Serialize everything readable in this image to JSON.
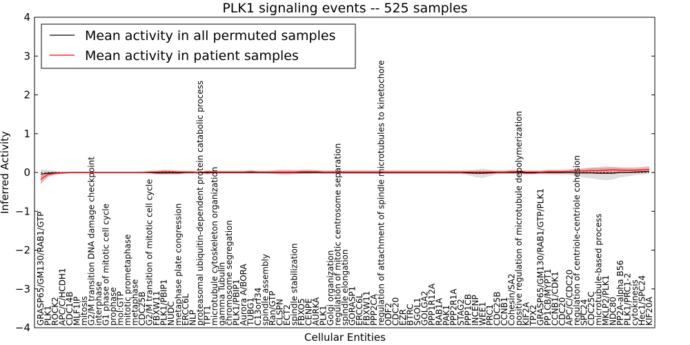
{
  "chart_data": {
    "type": "line",
    "title": "PLK1 signaling events -- 525 samples",
    "xlabel": "Cellular Entities",
    "ylabel": "Inferred Activity",
    "ylim": [
      -4,
      4
    ],
    "yticks": [
      -4,
      -3,
      -2,
      -1,
      0,
      1,
      2,
      3,
      4
    ],
    "ytick_labels": [
      "−4",
      "−3",
      "−2",
      "−1",
      "0",
      "1",
      "2",
      "3",
      "4"
    ],
    "grid": false,
    "legend_position": "top-left",
    "legend": [
      {
        "label": "Mean activity in all permuted samples",
        "color": "#000000"
      },
      {
        "label": "Mean activity in patient samples",
        "color": "#ff0000"
      }
    ],
    "categories": [
      "GRASP65/GM130/RAB1/GTP",
      "PLK1",
      "ROCK2",
      "APC/C/HCDH1",
      "CDC14B",
      "MLF1IP",
      "mitosis",
      "G2/M transition DNA damage checkpoint",
      "interphase",
      "G1 phase of mitotic cell cycle",
      "prophase",
      "mol:GTP",
      "mitotic prometaphase",
      "metaphase",
      "CDC25B",
      "G2/M transition of mitotic cell cycle",
      "FBXW11",
      "PLK1/PBIP1",
      "NUDC",
      "metaphase plate congression",
      "ERCC6L",
      "NLP",
      "proteasomal ubiquitin-dependent protein catabolic process",
      "TPT1",
      "microtubule cytoskeleton organization",
      "gamma Tubulin",
      "chromosome segregation",
      "PLK1/PBIP1",
      "Aurora A/BORA",
      "TUBG1",
      "C13orf34",
      "spindle assembly",
      "Ran/GTP",
      "CLSPN",
      "ECT2",
      "spindle stabilization",
      "FBXO5",
      "CENPE",
      "AURKA",
      "PLK1",
      "Golgi organization",
      "regulation of mitotic centrosome separation",
      "spindle elongation",
      "GORASP1",
      "ERCC6L",
      "FBXW11",
      "PPP2CA",
      "regulation of attachment of spindle microtubules to kinetochore",
      "ODF2",
      "CDC20",
      "EZR",
      "BTRC",
      "SGOL1",
      "GOLGA2",
      "PPP1R12A",
      "RAB1A",
      "PAK1",
      "PPP2R1A",
      "STAG2",
      "PPP1CB",
      "INCENP",
      "WEE1",
      "PRC1",
      "CDC25B",
      "CCNB1",
      "Cohesin/SA2",
      "positive regulation of microtubule depolymerization",
      "KIF2A",
      "TPX2",
      "GRASP65/GM130/RAB1/GTP/PLK1",
      "PP1CB/MYPT1",
      "CCNB1/CDK1",
      "CDC20",
      "APC/C/CDC20",
      "regulation of centriole-centriole cohesion",
      "SPC24",
      "CDC25C",
      "microtubule-based process",
      "MKLP2/PLK1",
      "NDC80",
      "PP2A-alpha B56",
      "PLK1/PRC1-2",
      "cytokinesis",
      "Hec1/SPC24",
      "KIF20A"
    ],
    "series": [
      {
        "name": "Mean activity in all permuted samples",
        "color": "#000000",
        "band_color": "#cccccc",
        "values": [
          -0.04,
          -0.02,
          -0.01,
          -0.01,
          0,
          0,
          0,
          0,
          0,
          0,
          0,
          0,
          0,
          0,
          0,
          0,
          -0.01,
          -0.01,
          -0.01,
          -0.01,
          0,
          0,
          0,
          -0.01,
          0,
          0,
          0,
          0,
          0,
          0,
          0,
          0,
          0,
          0,
          0,
          0,
          0,
          0,
          0,
          0,
          0,
          0,
          0,
          0,
          0,
          0,
          0,
          0,
          0,
          0,
          0,
          0,
          0,
          0,
          0,
          0,
          0,
          0,
          0,
          -0.01,
          -0.02,
          -0.02,
          -0.01,
          0,
          0,
          0,
          0,
          -0.01,
          -0.01,
          0,
          0,
          0,
          0,
          0,
          -0.01,
          -0.01,
          -0.01,
          -0.02,
          -0.02,
          -0.02,
          0,
          0,
          0.01,
          0.02,
          0.03
        ],
        "band": [
          0.12,
          0.08,
          0.06,
          0.03,
          0.02,
          0.02,
          0.02,
          0.02,
          0.02,
          0.02,
          0.02,
          0.02,
          0.02,
          0.02,
          0.03,
          0.03,
          0.05,
          0.05,
          0.05,
          0.05,
          0.04,
          0.03,
          0.03,
          0.05,
          0.03,
          0.03,
          0.03,
          0.03,
          0.03,
          0.03,
          0.03,
          0.03,
          0.03,
          0.03,
          0.03,
          0.03,
          0.03,
          0.03,
          0.03,
          0.03,
          0.03,
          0.03,
          0.03,
          0.03,
          0.03,
          0.03,
          0.03,
          0.03,
          0.03,
          0.03,
          0.03,
          0.03,
          0.03,
          0.03,
          0.03,
          0.03,
          0.03,
          0.03,
          0.04,
          0.06,
          0.1,
          0.12,
          0.08,
          0.04,
          0.03,
          0.03,
          0.04,
          0.05,
          0.05,
          0.04,
          0.05,
          0.06,
          0.05,
          0.06,
          0.08,
          0.12,
          0.14,
          0.16,
          0.18,
          0.16,
          0.12,
          0.1,
          0.08,
          0.07,
          0.06
        ]
      },
      {
        "name": "Mean activity in patient samples",
        "color": "#ff0000",
        "band_color": "#f08080",
        "values": [
          -0.18,
          -0.05,
          -0.02,
          -0.01,
          0,
          0,
          0,
          0,
          0,
          0,
          0,
          0,
          0,
          0,
          0,
          0.01,
          0.01,
          0.02,
          0.02,
          0.01,
          0.01,
          0.01,
          0,
          0.02,
          0.01,
          0.01,
          0.01,
          0.01,
          0.01,
          0.02,
          0.01,
          0.01,
          0.01,
          0.01,
          0.01,
          0.01,
          0.02,
          0.02,
          0.02,
          0.01,
          0.01,
          0.01,
          0.01,
          0.01,
          0.01,
          0.01,
          0.01,
          0.01,
          0.01,
          0.01,
          0.01,
          0.01,
          0.01,
          0.01,
          0.01,
          0.01,
          0.01,
          0.01,
          0.01,
          0.01,
          0.01,
          0.01,
          0.01,
          0.01,
          0.01,
          0.02,
          0.02,
          0.01,
          0.01,
          0.01,
          0.02,
          0.02,
          0.02,
          0.03,
          0.04,
          0.04,
          0.05,
          0.05,
          0.06,
          0.07,
          0.06,
          0.06,
          0.06,
          0.07,
          0.08
        ],
        "band": [
          0.12,
          0.06,
          0.03,
          0.02,
          0.02,
          0.02,
          0.02,
          0.02,
          0.02,
          0.02,
          0.02,
          0.02,
          0.02,
          0.02,
          0.02,
          0.03,
          0.04,
          0.05,
          0.04,
          0.04,
          0.03,
          0.03,
          0.02,
          0.04,
          0.03,
          0.03,
          0.03,
          0.03,
          0.03,
          0.04,
          0.03,
          0.03,
          0.04,
          0.06,
          0.06,
          0.05,
          0.05,
          0.05,
          0.04,
          0.04,
          0.04,
          0.04,
          0.04,
          0.04,
          0.04,
          0.04,
          0.04,
          0.04,
          0.04,
          0.04,
          0.04,
          0.04,
          0.04,
          0.04,
          0.04,
          0.04,
          0.04,
          0.04,
          0.04,
          0.04,
          0.04,
          0.04,
          0.04,
          0.04,
          0.04,
          0.05,
          0.05,
          0.04,
          0.04,
          0.04,
          0.05,
          0.05,
          0.05,
          0.05,
          0.06,
          0.06,
          0.07,
          0.07,
          0.07,
          0.07,
          0.07,
          0.07,
          0.07,
          0.07,
          0.08
        ]
      }
    ]
  }
}
